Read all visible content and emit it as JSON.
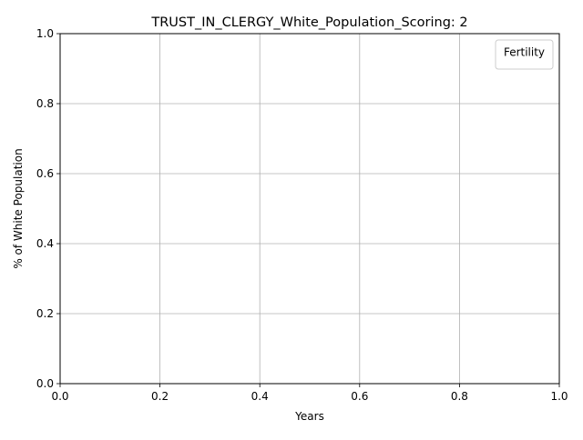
{
  "chart_data": {
    "type": "line",
    "title": "TRUST_IN_CLERGY_White_Population_Scoring: 2",
    "xlabel": "Years",
    "ylabel": "% of White Population",
    "xlim": [
      0.0,
      1.0
    ],
    "ylim": [
      0.0,
      1.0
    ],
    "x_ticks": [
      "0.0",
      "0.2",
      "0.4",
      "0.6",
      "0.8",
      "1.0"
    ],
    "y_ticks": [
      "0.0",
      "0.2",
      "0.4",
      "0.6",
      "0.8",
      "1.0"
    ],
    "grid": true,
    "legend": {
      "title": "Fertility",
      "placement": "top-right",
      "entries": []
    },
    "series": []
  }
}
